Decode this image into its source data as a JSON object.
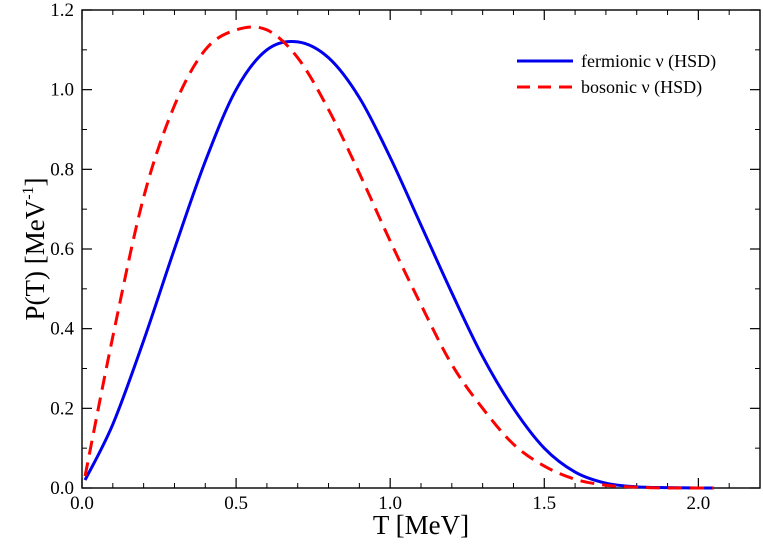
{
  "chart_data": {
    "type": "line",
    "title": "",
    "xlabel": "T [MeV]",
    "ylabel_main": "P(T) [MeV",
    "ylabel_exponent": "-1",
    "ylabel_close": "]",
    "xlim": [
      0.0,
      2.2
    ],
    "ylim": [
      0.0,
      1.2
    ],
    "xticks": [
      0.0,
      0.5,
      1.0,
      1.5,
      2.0
    ],
    "xtick_labels": [
      "0.0",
      "0.5",
      "1.0",
      "1.5",
      "2.0"
    ],
    "yticks": [
      0.0,
      0.2,
      0.4,
      0.6,
      0.8,
      1.0,
      1.2
    ],
    "ytick_labels": [
      "0.0",
      "0.2",
      "0.4",
      "0.6",
      "0.8",
      "1.0",
      "1.2"
    ],
    "legend_position": "top-right",
    "series": [
      {
        "name": "fermionic ν (HSD)",
        "color": "#0000ee",
        "style": "solid",
        "x": [
          0.01,
          0.1,
          0.2,
          0.3,
          0.4,
          0.5,
          0.6,
          0.7,
          0.8,
          0.9,
          1.0,
          1.1,
          1.2,
          1.3,
          1.4,
          1.5,
          1.6,
          1.7,
          1.8,
          1.9,
          2.0,
          2.05
        ],
        "y": [
          0.02,
          0.16,
          0.37,
          0.6,
          0.82,
          1.0,
          1.1,
          1.12,
          1.08,
          0.98,
          0.83,
          0.66,
          0.49,
          0.33,
          0.2,
          0.1,
          0.04,
          0.012,
          0.003,
          0.001,
          0.0,
          0.0
        ]
      },
      {
        "name": "bosonic ν (HSD)",
        "color": "#ff0000",
        "style": "dashed",
        "x": [
          0.01,
          0.1,
          0.2,
          0.3,
          0.4,
          0.5,
          0.6,
          0.7,
          0.8,
          0.9,
          1.0,
          1.1,
          1.2,
          1.3,
          1.4,
          1.5,
          1.6,
          1.7,
          1.8,
          1.9,
          2.0,
          2.05
        ],
        "y": [
          0.03,
          0.38,
          0.73,
          0.96,
          1.1,
          1.15,
          1.15,
          1.08,
          0.95,
          0.79,
          0.62,
          0.46,
          0.31,
          0.2,
          0.11,
          0.055,
          0.022,
          0.007,
          0.002,
          0.0,
          0.0,
          0.0
        ]
      }
    ]
  }
}
